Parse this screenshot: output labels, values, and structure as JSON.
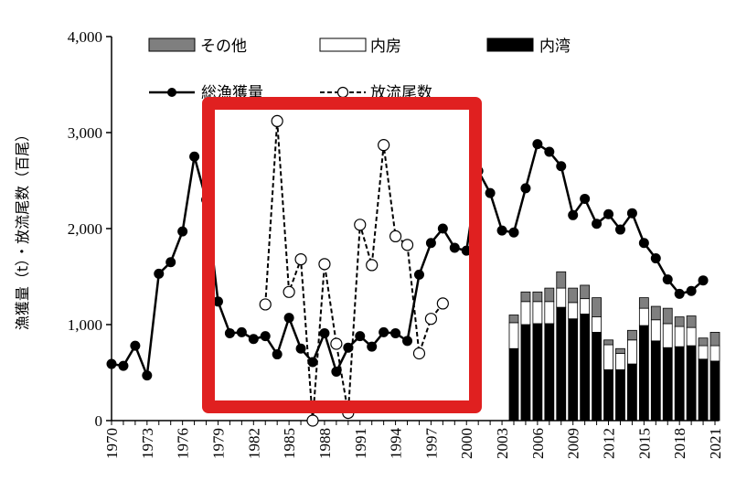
{
  "chart_data": {
    "type": "bar",
    "ylabel": "漁獲量（t）・放流尾数（百尾）",
    "ylim": [
      0,
      4000
    ],
    "yticks": [
      "0",
      "1,000",
      "2,000",
      "3,000",
      "4,000"
    ],
    "xlim": [
      1970,
      2021
    ],
    "xticks": [
      "1970",
      "1973",
      "1976",
      "1979",
      "1982",
      "1985",
      "1988",
      "1991",
      "1994",
      "1997",
      "2000",
      "2003",
      "2006",
      "2009",
      "2012",
      "2015",
      "2018",
      "2021"
    ],
    "legend": {
      "position": "top",
      "sonota": "その他",
      "naibou": "内房",
      "naiwan": "内湾",
      "total": "総漁獲量",
      "release": "放流尾数"
    },
    "colors": {
      "sonota": "#7f7f7f",
      "naibou": "#ffffff",
      "naiwan": "#000000",
      "highlight": "#e02020"
    },
    "stacked_years": [
      2004,
      2005,
      2006,
      2007,
      2008,
      2009,
      2010,
      2011,
      2012,
      2013,
      2014,
      2015,
      2016,
      2017,
      2018,
      2019,
      2020,
      2021
    ],
    "series": [
      {
        "name": "内湾",
        "values": [
          750,
          1000,
          1010,
          1010,
          1180,
          1060,
          1110,
          920,
          530,
          530,
          590,
          990,
          830,
          760,
          770,
          780,
          640,
          620
        ]
      },
      {
        "name": "内房",
        "values": [
          270,
          240,
          230,
          230,
          200,
          170,
          160,
          160,
          260,
          170,
          250,
          180,
          220,
          250,
          210,
          190,
          140,
          160
        ]
      },
      {
        "name": "その他",
        "values": [
          80,
          100,
          100,
          140,
          170,
          150,
          140,
          200,
          50,
          50,
          100,
          110,
          140,
          160,
          100,
          120,
          80,
          140
        ]
      }
    ],
    "lines": [
      {
        "name": "総漁獲量",
        "x": [
          1970,
          1971,
          1972,
          1973,
          1974,
          1975,
          1976,
          1977,
          1978,
          1979,
          1980,
          1981,
          1982,
          1983,
          1984,
          1985,
          1986,
          1987,
          1988,
          1989,
          1990,
          1991,
          1992,
          1993,
          1994,
          1995,
          1996,
          1997,
          1998,
          1999,
          2000,
          2001,
          2002,
          2003,
          2004,
          2005,
          2006,
          2007,
          2008,
          2009,
          2010,
          2011,
          2012,
          2013,
          2014,
          2015,
          2016,
          2017,
          2018,
          2019,
          2020
        ],
        "y": [
          590,
          570,
          780,
          470,
          1530,
          1650,
          1970,
          2750,
          2300,
          1240,
          910,
          920,
          850,
          880,
          690,
          1070,
          750,
          610,
          910,
          510,
          760,
          880,
          770,
          920,
          910,
          830,
          1520,
          1850,
          2000,
          1800,
          1770,
          2600,
          2370,
          1980,
          1960,
          2420,
          2880,
          2800,
          2650,
          2140,
          2310,
          2050,
          2150,
          1990,
          2160,
          1850,
          1690,
          1470,
          1320,
          1350,
          1460
        ]
      },
      {
        "name": "放流尾数",
        "x": [
          1983,
          1984,
          1985,
          1986,
          1987,
          1988,
          1989,
          1990,
          1991,
          1992,
          1993,
          1994,
          1995,
          1996,
          1997,
          1998
        ],
        "y": [
          1210,
          3120,
          1340,
          1680,
          0,
          1630,
          800,
          80,
          2040,
          1620,
          2870,
          1920,
          1830,
          700,
          1060,
          1220
        ]
      }
    ]
  }
}
